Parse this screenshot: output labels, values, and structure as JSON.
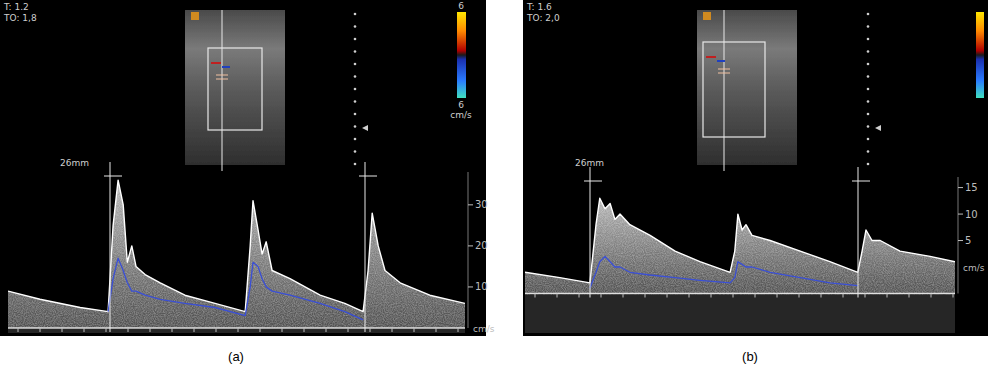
{
  "chart_data": [
    {
      "type": "line",
      "title": "(a)",
      "annotations": [
        "T: 1.2",
        "TO: 1,8",
        "26mm",
        "6",
        "6",
        "cm/s"
      ],
      "y_label": "cm/s",
      "xlim": [
        0,
        100
      ],
      "x": [
        0,
        7.0,
        15.8,
        21.9,
        23.0,
        24.1,
        25.2,
        26.1,
        27.1,
        28.0,
        30.0,
        33.3,
        38.7,
        45.3,
        51.9,
        53.0,
        53.6,
        54.7,
        55.6,
        56.5,
        57.8,
        61.7,
        68.3,
        73.7,
        77.7,
        78.8,
        79.7,
        81.0,
        82.5,
        85.8,
        92.3,
        100
      ],
      "ylim": [
        0,
        38
      ],
      "yticks": [
        10,
        20,
        30
      ],
      "tick_labels": "y",
      "series": [
        {
          "type": "area",
          "color": "#ffffff",
          "values": [
            9,
            7,
            5,
            4,
            25,
            36,
            30,
            16,
            20,
            15,
            13,
            11,
            8,
            6,
            4,
            20,
            31,
            24,
            18,
            21,
            14,
            12,
            8,
            6,
            4,
            14,
            28,
            20,
            14,
            11,
            8,
            6
          ]
        },
        {
          "type": "line",
          "color": "#3a4fd6",
          "values": [
            null,
            null,
            null,
            4,
            12,
            17,
            14,
            11,
            9,
            9,
            8,
            7,
            6,
            5,
            3,
            10,
            16,
            15,
            12,
            10,
            9,
            8,
            6,
            4,
            2,
            null,
            null,
            null,
            null,
            null,
            null,
            null
          ]
        }
      ]
    },
    {
      "type": "line",
      "title": "(b)",
      "annotations": [
        "T: 1.6",
        "TO: 2,0",
        "26mm"
      ],
      "y_label": "cm/s",
      "xlim": [
        0,
        100
      ],
      "x": [
        0,
        8.1,
        15.1,
        16.5,
        17.4,
        18.6,
        19.8,
        20.9,
        22.1,
        24.4,
        29.1,
        34.9,
        40.7,
        47.7,
        48.8,
        49.5,
        50.5,
        51.4,
        52.8,
        57.0,
        64.0,
        70.9,
        77.4,
        78.4,
        79.3,
        80.7,
        82.6,
        87.2,
        94.2,
        100
      ],
      "ylim": [
        -5,
        17
      ],
      "yticks": [
        5,
        10,
        15
      ],
      "tick_labels": "y",
      "series": [
        {
          "type": "area",
          "color": "#ffffff",
          "values": [
            -1,
            -2,
            -3,
            8,
            13,
            11,
            12,
            9,
            10,
            8,
            6,
            3,
            1,
            -1,
            3,
            10,
            7,
            8,
            6,
            5,
            3,
            1,
            -1,
            3,
            7,
            5,
            5,
            3,
            2,
            1
          ]
        },
        {
          "type": "line",
          "color": "#3a4fd6",
          "values": [
            null,
            null,
            -4,
            -1,
            1,
            2,
            1,
            0,
            0,
            -1,
            -1.5,
            -2,
            -2.5,
            -3,
            -2,
            1,
            0.5,
            0,
            0,
            -1,
            -2,
            -3,
            -3.5,
            null,
            null,
            null,
            null,
            null,
            null,
            null
          ]
        }
      ]
    }
  ]
}
